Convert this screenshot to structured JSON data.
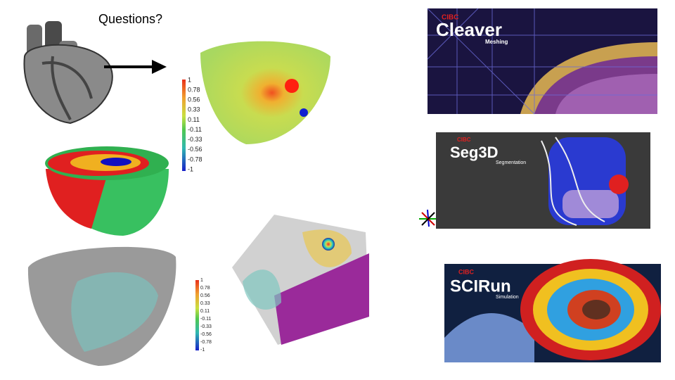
{
  "title": "Questions?",
  "colorbar_top": {
    "labels": [
      1,
      0.78,
      0.56,
      0.33,
      0.11,
      -0.11,
      -0.33,
      -0.56,
      -0.78,
      -1
    ]
  },
  "colorbar_bottom": {
    "labels": [
      1,
      0.78,
      0.56,
      0.33,
      0.11,
      -0.11,
      -0.33,
      -0.56,
      -0.78,
      -1
    ]
  },
  "logos": [
    {
      "org": "CIBC",
      "name": "Cleaver",
      "subtitle": "Meshing"
    },
    {
      "org": "CIBC",
      "name": "Seg3D",
      "subtitle": "Segmentation"
    },
    {
      "org": "CIBC",
      "name": "SCIRun",
      "subtitle": "Simulation"
    }
  ]
}
